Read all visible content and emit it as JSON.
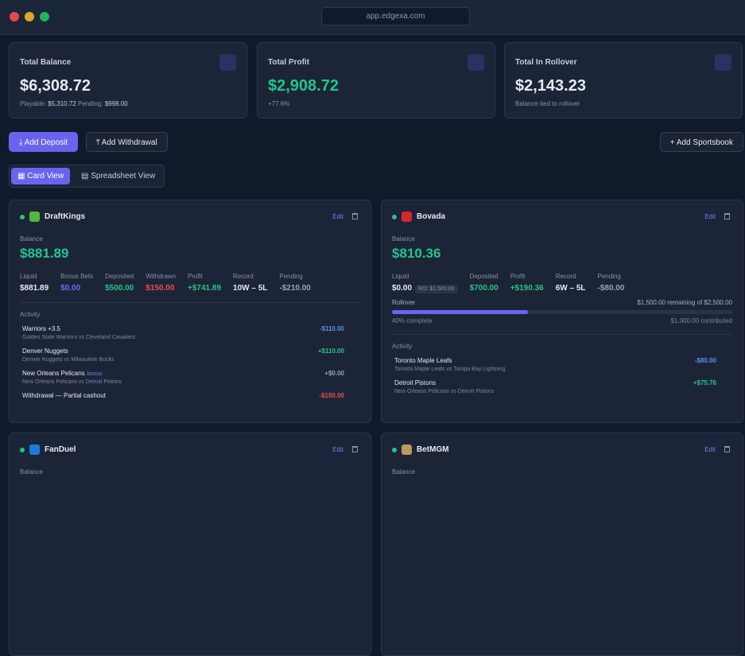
{
  "browser": {
    "url": "app.edgexa.com"
  },
  "summary": [
    {
      "title": "Total Balance",
      "value": "$6,308.72",
      "details": [
        {
          "label": "Playable:",
          "value": "$5,310.72"
        },
        {
          "label": "Pending:",
          "value": "$998.00"
        }
      ]
    },
    {
      "title": "Total Profit",
      "value": "$2,908.72",
      "note": "+77.6%",
      "color": "#22c58b"
    },
    {
      "title": "Total In Rollover",
      "value": "$2,143.23",
      "note": "Balance tied to rollover"
    }
  ],
  "actions": {
    "deposit": "Add Deposit",
    "withdrawal": "Add Withdrawal",
    "sportsbook": "Add Sportsbook"
  },
  "views": [
    "Card View",
    "Spreadsheet View"
  ],
  "books": [
    {
      "name": "DraftKings",
      "logo_color": "#53b83a",
      "edit": "Edit",
      "balance_label": "Balance",
      "balance": "$881.89",
      "stats": [
        {
          "label": "Liquid",
          "value": "$881.89",
          "color": "#e6e9f0"
        },
        {
          "label": "Bonus Bets",
          "value": "$0.00",
          "color": "#6d6cf5"
        },
        {
          "label": "Deposited",
          "value": "$500.00",
          "color": "#22c58b"
        },
        {
          "label": "Withdrawn",
          "value": "$150.00",
          "color": "#f04a4a"
        },
        {
          "label": "Profit",
          "value": "+$741.89",
          "color": "#22c58b"
        },
        {
          "label": "Record",
          "value": "10W – 5L",
          "color": "#e6e9f0"
        },
        {
          "label": "Pending",
          "value": "-$210.00",
          "color": "#9aa3b5"
        }
      ],
      "activity_label": "Activity",
      "activity": [
        {
          "title": "Warriors +3.5",
          "sub": "Golden State Warriors vs Cleveland Cavaliers",
          "amount": "-$110.00",
          "color": "#5b8def"
        },
        {
          "title": "Denver Nuggets",
          "sub": "Denver Nuggets vs Milwaukee Bucks",
          "amount": "+$110.00",
          "color": "#22c58b"
        },
        {
          "title": "New Orleans Pelicans",
          "tag": "bonus",
          "sub": "New Orleans Pelicans vs Detroit Pistons",
          "amount": "+$0.00",
          "color": "#9aa3b5"
        },
        {
          "title": "Withdrawal — Partial cashout",
          "amount": "-$150.00",
          "color": "#f04a4a"
        }
      ]
    },
    {
      "name": "Bovada",
      "logo_color": "#d8262e",
      "edit": "Edit",
      "balance_label": "Balance",
      "balance": "$810.36",
      "stats": [
        {
          "label": "Liquid",
          "value": "$0.00",
          "badge": "RO: $1,500.00",
          "color": "#e6e9f0"
        },
        {
          "label": "Deposited",
          "value": "$700.00",
          "color": "#22c58b"
        },
        {
          "label": "Profit",
          "value": "+$190.36",
          "color": "#22c58b"
        },
        {
          "label": "Record",
          "value": "6W – 5L",
          "color": "#e6e9f0"
        },
        {
          "label": "Pending",
          "value": "-$80.00",
          "color": "#9aa3b5"
        }
      ],
      "rollover": {
        "label": "Rollover",
        "remaining": "$1,500.00 remaining of $2,500.00",
        "progress": 40,
        "progress_label": "40% complete",
        "contributed": "$1,000.00 contributed"
      },
      "activity_label": "Activity",
      "activity": [
        {
          "title": "Toronto Maple Leafs",
          "sub": "Toronto Maple Leafs vs Tampa Bay Lightning",
          "amount": "-$80.00",
          "color": "#5b8def"
        },
        {
          "title": "Detroit Pistons",
          "sub": "New Orleans Pelicans vs Detroit Pistons",
          "amount": "+$75.76",
          "color": "#22c58b"
        }
      ]
    },
    {
      "name": "FanDuel",
      "logo_color": "#1f7ae0",
      "edit": "Edit",
      "balance_label": "Balance"
    },
    {
      "name": "BetMGM",
      "logo_color": "#b89a5a",
      "edit": "Edit",
      "balance_label": "Balance"
    }
  ]
}
